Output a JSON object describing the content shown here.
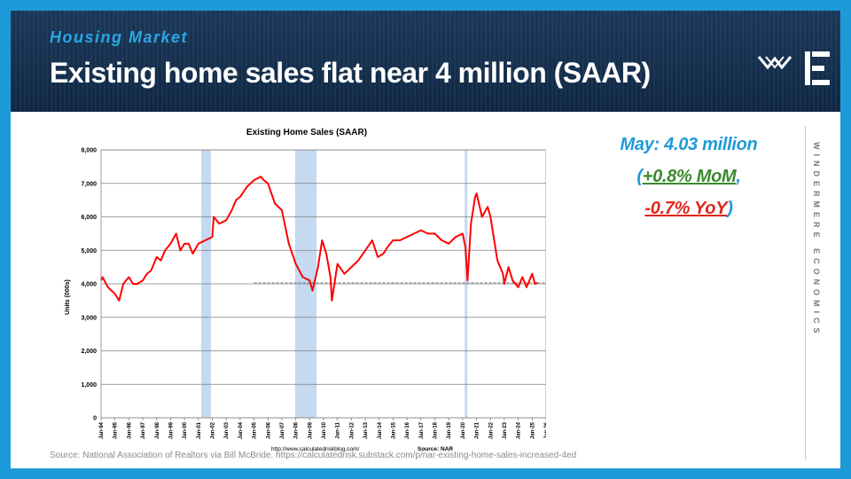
{
  "header": {
    "kicker": "Housing Market",
    "title": "Existing home sales flat near 4 million (SAAR)"
  },
  "highlights": {
    "line1": "May: 4.03 million",
    "paren_open": "(",
    "mom": "+0.8% MoM",
    "comma": ",",
    "yoy": "-0.7% YoY",
    "paren_close": ")"
  },
  "brand": {
    "vertical_text": "WINDERMERE ECONOMICS"
  },
  "source": "Source: National Association of Realtors via Bill McBride. https://calculatedrisk.substack.com/p/nar-existing-home-sales-increased-4ed",
  "colors": {
    "frame": "#1e9ad8",
    "line": "#ff0000",
    "recession": "#c5d9f1",
    "dashed_ref": "#808080",
    "mom": "#3a8a2c",
    "yoy": "#e0261e"
  },
  "chart_data": {
    "type": "line",
    "title": "Existing Home Sales (SAAR)",
    "ylabel": "Units (000s)",
    "ylim": [
      0,
      8000
    ],
    "yticks": [
      "0",
      "1,000",
      "2,000",
      "3,000",
      "4,000",
      "5,000",
      "6,000",
      "7,000",
      "8,000"
    ],
    "xlim": [
      1994.0,
      2026.0
    ],
    "xticks": [
      "Jan-94",
      "Jan-95",
      "Jan-96",
      "Jan-97",
      "Jan-98",
      "Jan-99",
      "Jan-00",
      "Jan-01",
      "Jan-02",
      "Jan-03",
      "Jan-04",
      "Jan-05",
      "Jan-06",
      "Jan-07",
      "Jan-08",
      "Jan-09",
      "Jan-10",
      "Jan-11",
      "Jan-12",
      "Jan-13",
      "Jan-14",
      "Jan-15",
      "Jan-16",
      "Jan-17",
      "Jan-18",
      "Jan-19",
      "Jan-20",
      "Jan-21",
      "Jan-22",
      "Jan-23",
      "Jan-24",
      "Jan-25",
      "Jan-26"
    ],
    "grid": "horizontal",
    "recessions": [
      [
        2001.2,
        2001.9
      ],
      [
        2007.95,
        2009.5
      ],
      [
        2020.15,
        2020.35
      ]
    ],
    "reference_line": {
      "y": 4030,
      "x_start": 2005.0,
      "x_end": 2025.9,
      "style": "dashed"
    },
    "footnote_left": "http://www.calculatedriskblog.com/",
    "footnote_right": "Source: NAR",
    "series": [
      {
        "x": [
          1994.0,
          1994.1,
          1994.5,
          1995.0,
          1995.3,
          1995.6,
          1996.0,
          1996.3,
          1996.6,
          1997.0,
          1997.3,
          1997.6,
          1998.0,
          1998.3,
          1998.6,
          1999.0,
          1999.4,
          1999.7,
          2000.0,
          2000.3,
          2000.6,
          2001.0,
          2001.5,
          2002.0,
          2002.1,
          2002.5,
          2003.0,
          2003.4,
          2003.7,
          2004.0,
          2004.5,
          2005.0,
          2005.5,
          2005.7,
          2006.0,
          2006.5,
          2007.0,
          2007.5,
          2008.0,
          2008.5,
          2009.0,
          2009.2,
          2009.6,
          2009.9,
          2010.2,
          2010.5,
          2010.6,
          2011.0,
          2011.5,
          2012.0,
          2012.5,
          2013.0,
          2013.5,
          2013.9,
          2014.3,
          2014.6,
          2015.0,
          2015.5,
          2016.0,
          2016.5,
          2017.0,
          2017.5,
          2018.0,
          2018.5,
          2019.0,
          2019.5,
          2020.0,
          2020.2,
          2020.35,
          2020.6,
          2020.9,
          2021.0,
          2021.4,
          2021.8,
          2022.0,
          2022.5,
          2022.9,
          2023.0,
          2023.3,
          2023.6,
          2024.0,
          2024.3,
          2024.6,
          2025.0,
          2025.2,
          2025.4
        ],
        "y": [
          4100,
          4200,
          3900,
          3700,
          3500,
          4000,
          4200,
          4000,
          4000,
          4100,
          4300,
          4400,
          4800,
          4700,
          5000,
          5200,
          5500,
          5000,
          5200,
          5200,
          4900,
          5200,
          5300,
          5400,
          6000,
          5800,
          5900,
          6200,
          6500,
          6600,
          6900,
          7100,
          7200,
          7100,
          7000,
          6400,
          6200,
          5200,
          4600,
          4200,
          4100,
          3800,
          4500,
          5300,
          4900,
          4200,
          3500,
          4600,
          4300,
          4500,
          4700,
          5000,
          5300,
          4800,
          4900,
          5100,
          5300,
          5300,
          5400,
          5500,
          5600,
          5500,
          5500,
          5300,
          5200,
          5400,
          5500,
          5100,
          4100,
          5800,
          6600,
          6700,
          6000,
          6300,
          6000,
          4700,
          4300,
          4000,
          4500,
          4100,
          3900,
          4200,
          3900,
          4300,
          4000,
          4030
        ]
      }
    ]
  }
}
